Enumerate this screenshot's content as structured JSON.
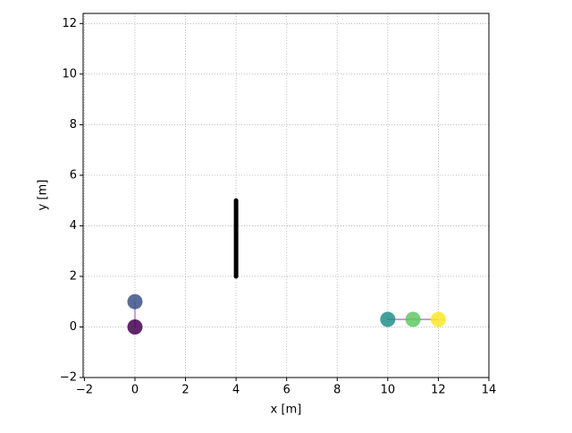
{
  "chart_data": {
    "type": "scatter",
    "xlabel": "x [m]",
    "ylabel": "y [m]",
    "x": [
      0,
      0,
      10,
      11,
      12
    ],
    "y": [
      0,
      1,
      0.3,
      0.3,
      0.3
    ],
    "colors": [
      "#440154",
      "#3b528b",
      "#21918c",
      "#5ec962",
      "#fde725"
    ],
    "lines": [
      {
        "x": [
          0,
          0
        ],
        "y": [
          0,
          1
        ],
        "color": "#c9a0c9",
        "linewidth": 2
      },
      {
        "x": [
          10,
          11,
          12
        ],
        "y": [
          0.3,
          0.3,
          0.3
        ],
        "color": "#c9a0c9",
        "linewidth": 2
      },
      {
        "x": [
          4,
          4
        ],
        "y": [
          2,
          5
        ],
        "color": "#000000",
        "linewidth": 5
      }
    ],
    "xlim": [
      -2.05,
      14
    ],
    "ylim": [
      -2,
      12.4
    ],
    "xticks": [
      {
        "value": -2,
        "label": "−2"
      },
      0,
      2,
      4,
      6,
      8,
      10,
      12,
      14
    ],
    "yticks": [
      {
        "value": -2,
        "label": "−2"
      },
      0,
      2,
      4,
      6,
      8,
      10,
      12
    ],
    "grid": true
  }
}
